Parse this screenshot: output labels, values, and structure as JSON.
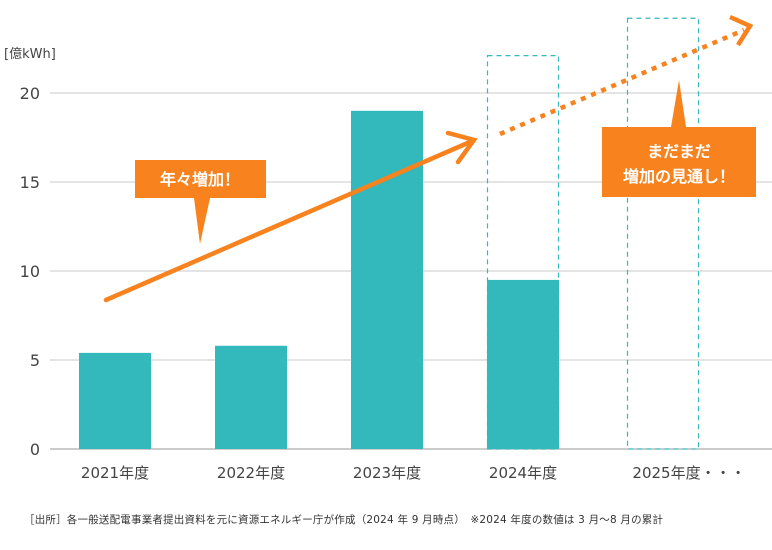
{
  "chart_data": {
    "type": "bar",
    "y_unit_label": "[億kWh]",
    "categories": [
      "2021年度",
      "2022年度",
      "2023年度",
      "2024年度",
      "2025年度・・・"
    ],
    "values": [
      5.4,
      5.8,
      19.0,
      9.5,
      null
    ],
    "ylim": [
      0,
      20
    ],
    "yticks": [
      "0",
      "5",
      "10",
      "15",
      "20"
    ],
    "grid": true,
    "bar_color": "#33b8bb",
    "accent_color": "#f7821e",
    "projection_boxes": [
      {
        "category": "2024年度",
        "value": 22.1
      },
      {
        "category": "2025年度・・・",
        "value": 24.2
      }
    ],
    "annotations": {
      "trend": "年々増加！",
      "outlook_line1": "まだまだ",
      "outlook_line2": "増加の見通し！"
    }
  },
  "footnote": "［出所］各一般送配電事業者提出資料を元に資源エネルギー庁が作成（2024 年 9 月時点）　※2024 年度の数値は 3 月〜8 月の累計"
}
